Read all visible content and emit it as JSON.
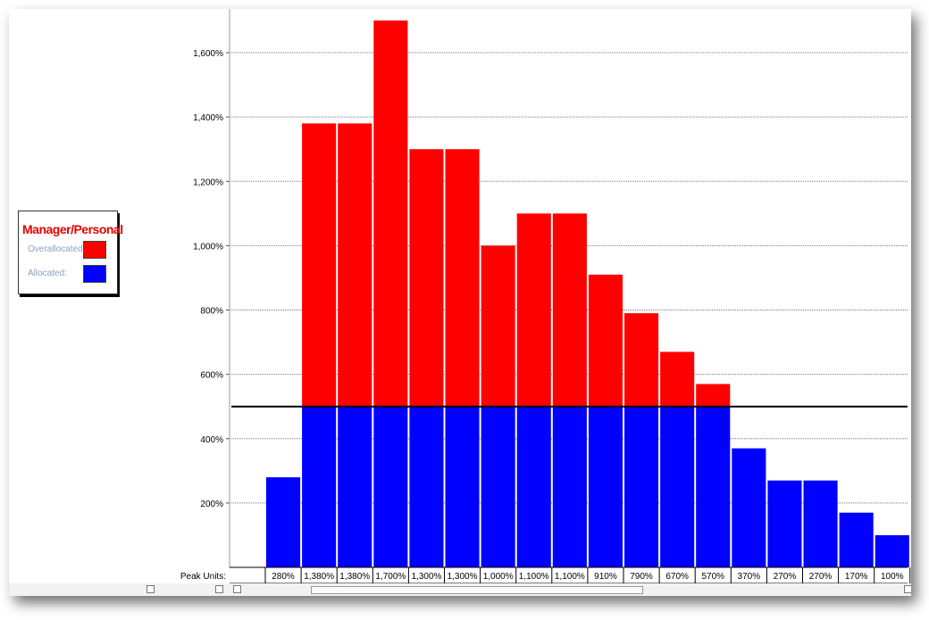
{
  "legend": {
    "title": "Manager/Personal",
    "overallocated_label": "Overallocated:",
    "allocated_label": "Allocated:"
  },
  "colors": {
    "overallocated": "#ff0000",
    "allocated": "#0000ff",
    "legend_title": "#e60000",
    "grid": "#777777",
    "max_line": "#000000"
  },
  "footer": {
    "peak_units_label": "Peak Units:"
  },
  "chart_data": {
    "type": "bar",
    "stacked": true,
    "title": "",
    "xlabel": "",
    "ylabel": "",
    "ylim": [
      0,
      1700
    ],
    "yticks": [
      200,
      400,
      600,
      800,
      1000,
      1200,
      1400,
      1600
    ],
    "ytick_labels": [
      "200%",
      "400%",
      "600%",
      "800%",
      "1,000%",
      "1,200%",
      "1,400%",
      "1,600%"
    ],
    "max_units_line": 500,
    "grid": true,
    "legend_position": "left",
    "peak_units": [
      280,
      1380,
      1380,
      1700,
      1300,
      1300,
      1000,
      1100,
      1100,
      910,
      790,
      670,
      570,
      370,
      270,
      270,
      170,
      100
    ],
    "peak_unit_labels": [
      "280%",
      "1,380%",
      "1,380%",
      "1,700%",
      "1,300%",
      "1,300%",
      "1,000%",
      "1,100%",
      "1,100%",
      "910%",
      "790%",
      "670%",
      "570%",
      "370%",
      "270%",
      "270%",
      "170%",
      "100%"
    ],
    "series": [
      {
        "name": "Allocated",
        "values": [
          280,
          500,
          500,
          500,
          500,
          500,
          500,
          500,
          500,
          500,
          500,
          500,
          500,
          370,
          270,
          270,
          170,
          100
        ]
      },
      {
        "name": "Overallocated",
        "values": [
          0,
          880,
          880,
          1200,
          800,
          800,
          500,
          600,
          600,
          410,
          290,
          170,
          70,
          0,
          0,
          0,
          0,
          0
        ]
      }
    ]
  }
}
